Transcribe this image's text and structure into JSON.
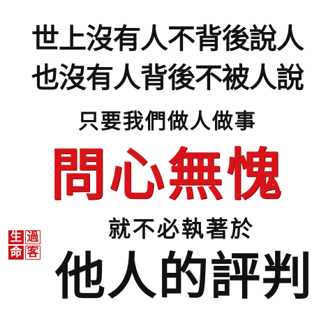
{
  "lines": [
    "世上沒有人不背後說人",
    "也沒有人背後不被人說",
    "只要我們做人做事",
    "問心無愧",
    "就不必執著於",
    "他人的評判"
  ],
  "seal": [
    "生",
    "過",
    "命",
    "客"
  ],
  "colors": {
    "text": "#111111",
    "accent": "#d7141a",
    "seal": "#c8151b",
    "background": "#ffffff"
  }
}
